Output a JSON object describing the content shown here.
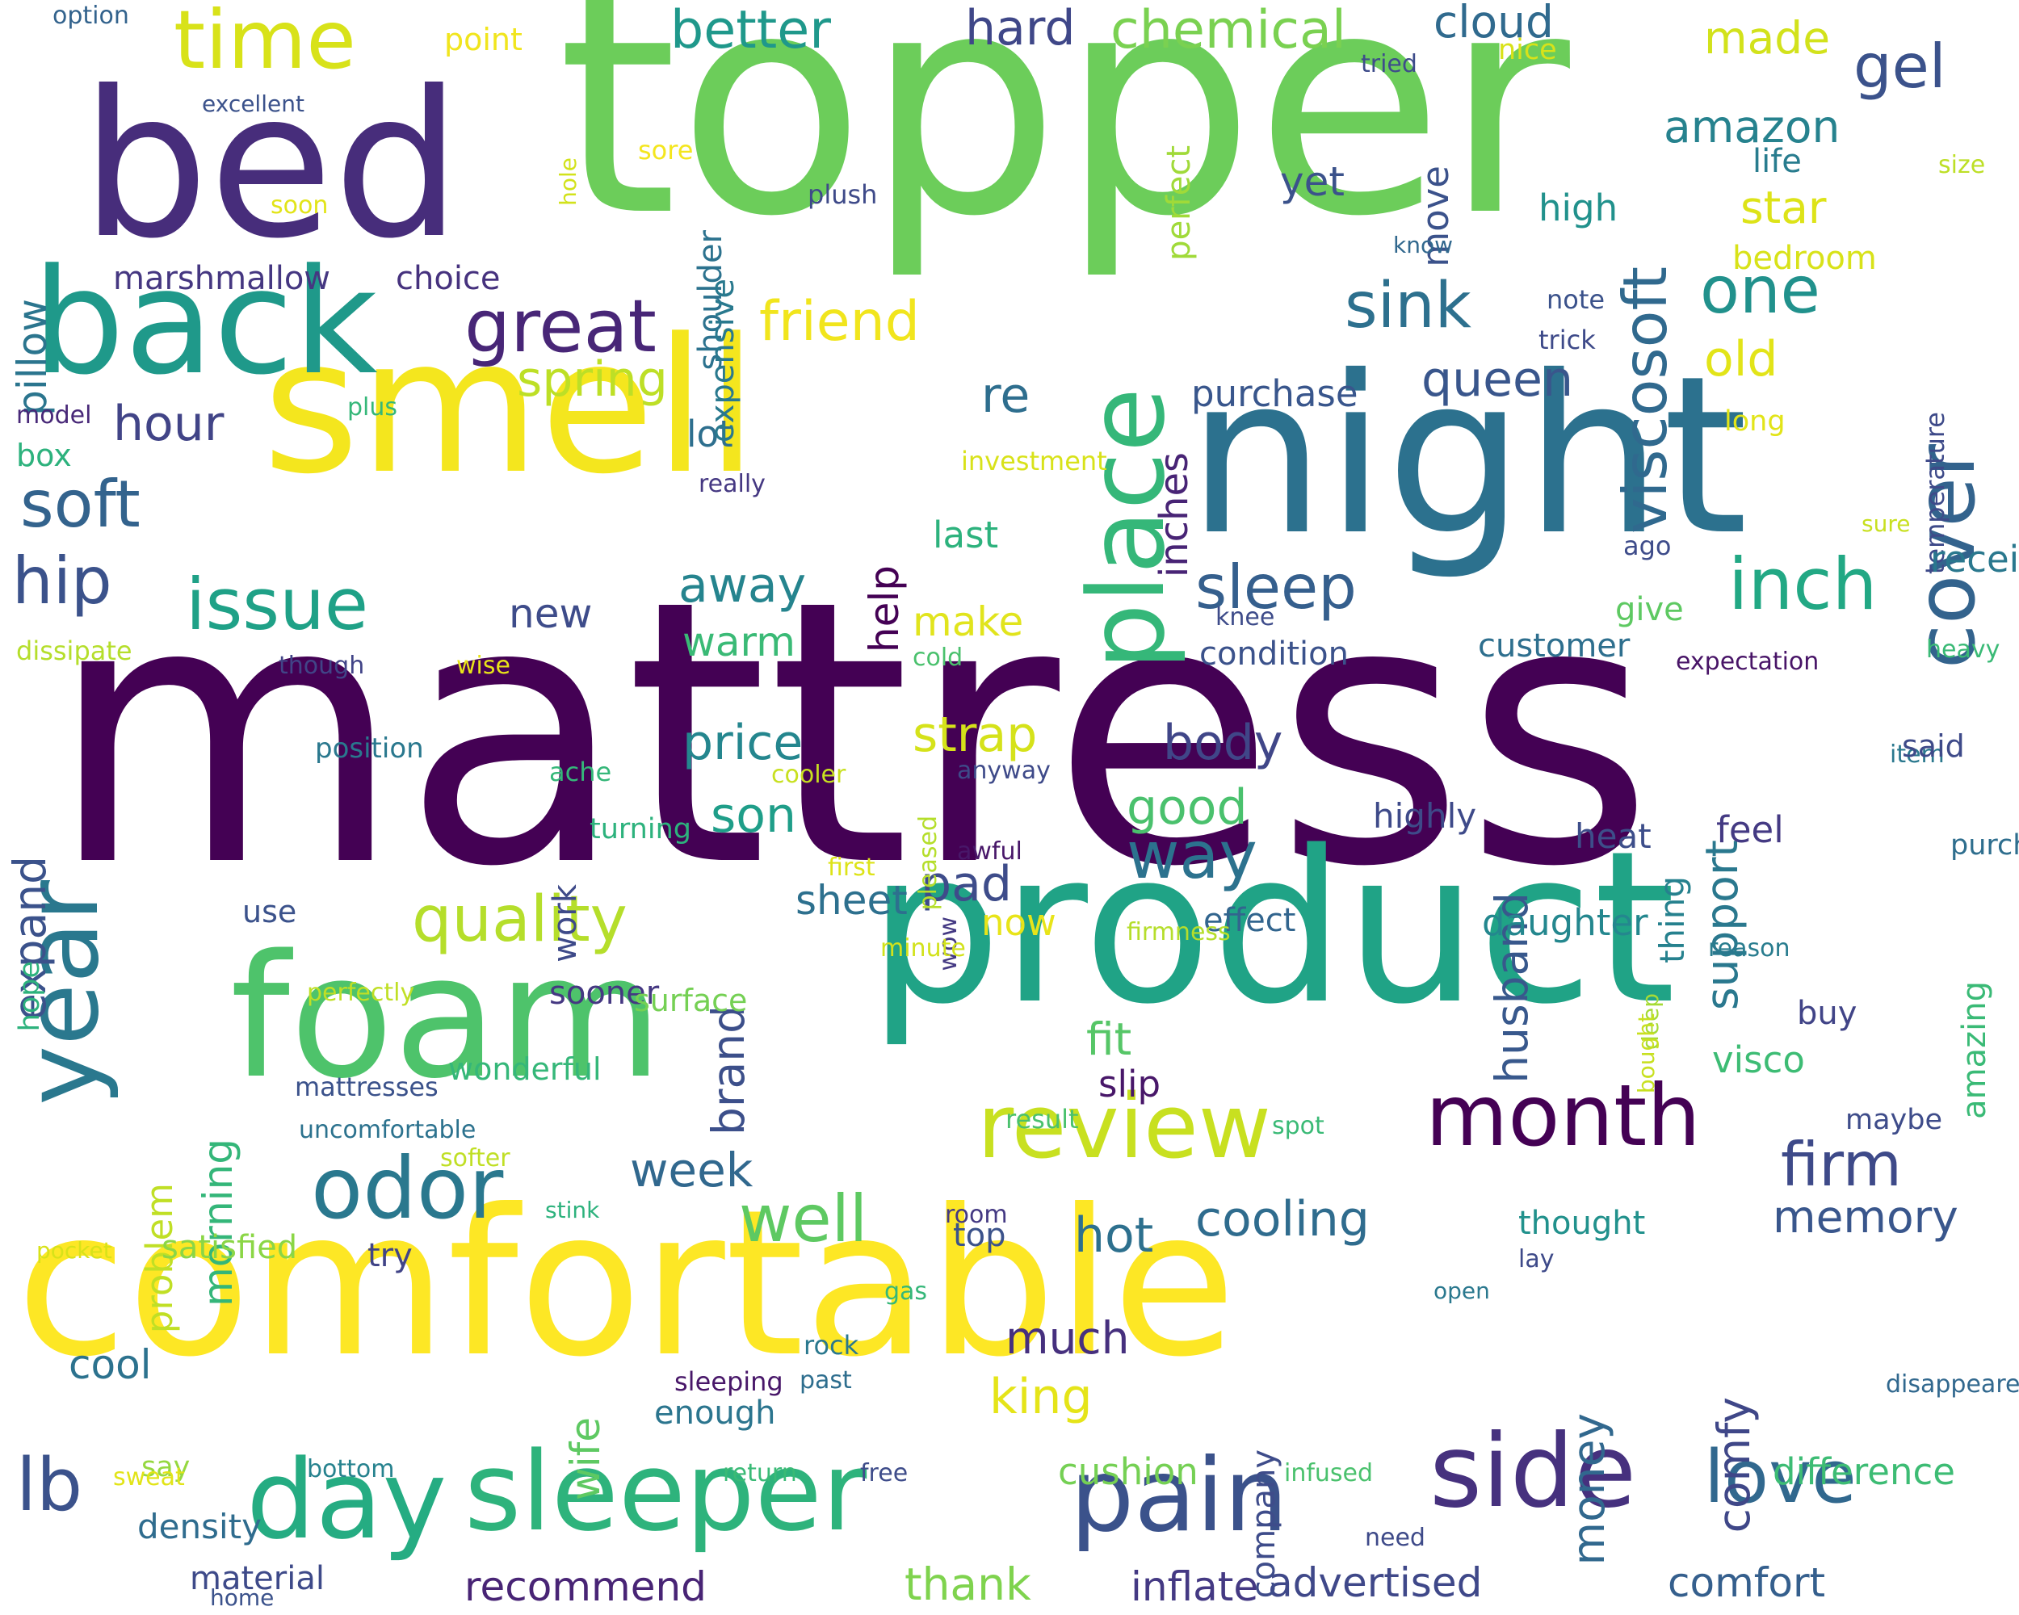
{
  "cloud": {
    "words": [
      {
        "text": "mattress",
        "color": "#440154"
      },
      {
        "text": "topper",
        "color": "#6ccd5a"
      },
      {
        "text": "comfortable",
        "color": "#fde725"
      },
      {
        "text": "product",
        "color": "#20a386"
      },
      {
        "text": "night",
        "color": "#2c718e"
      },
      {
        "text": "smell",
        "color": "#f4e61e"
      },
      {
        "text": "bed",
        "color": "#472d7b"
      },
      {
        "text": "foam",
        "color": "#4ec36b"
      },
      {
        "text": "back",
        "color": "#1f998a"
      },
      {
        "text": "sleeper",
        "color": "#2eb37c"
      },
      {
        "text": "year",
        "color": "#2a788e"
      },
      {
        "text": "day",
        "color": "#25ac82"
      },
      {
        "text": "review",
        "color": "#c8e020"
      },
      {
        "text": "side",
        "color": "#46317e"
      },
      {
        "text": "pain",
        "color": "#3b528b"
      },
      {
        "text": "month",
        "color": "#440154"
      },
      {
        "text": "odor",
        "color": "#2a788e"
      },
      {
        "text": "time",
        "color": "#d8e219"
      },
      {
        "text": "place",
        "color": "#35b779"
      },
      {
        "text": "great",
        "color": "#482677"
      },
      {
        "text": "cover",
        "color": "#33638d"
      },
      {
        "text": "love",
        "color": "#31688e"
      },
      {
        "text": "lb",
        "color": "#3b528b"
      },
      {
        "text": "issue",
        "color": "#1fa187"
      },
      {
        "text": "inch",
        "color": "#22a884"
      },
      {
        "text": "sleep",
        "color": "#355f8d"
      },
      {
        "text": "quality",
        "color": "#b5de2b"
      },
      {
        "text": "well",
        "color": "#5ec962"
      },
      {
        "text": "way",
        "color": "#2c728e"
      },
      {
        "text": "one",
        "color": "#21918c"
      },
      {
        "text": "firm",
        "color": "#3e4a89"
      },
      {
        "text": "sink",
        "color": "#2d708e"
      },
      {
        "text": "soft",
        "color": "#33638d"
      },
      {
        "text": "hip",
        "color": "#3b528b"
      },
      {
        "text": "gel",
        "color": "#3b528b"
      },
      {
        "text": "friend",
        "color": "#f1e51d"
      },
      {
        "text": "better",
        "color": "#1f988b"
      },
      {
        "text": "chemical",
        "color": "#7ad151"
      },
      {
        "text": "hard",
        "color": "#3f4788"
      },
      {
        "text": "queen",
        "color": "#39568c"
      },
      {
        "text": "cloud",
        "color": "#306a8e"
      },
      {
        "text": "spring",
        "color": "#bddf26"
      },
      {
        "text": "hour",
        "color": "#414487"
      },
      {
        "text": "price",
        "color": "#24868e"
      },
      {
        "text": "son",
        "color": "#1f9e89"
      },
      {
        "text": "pad",
        "color": "#3e4c8a"
      },
      {
        "text": "strap",
        "color": "#d5e21a"
      },
      {
        "text": "body",
        "color": "#404688"
      },
      {
        "text": "good",
        "color": "#4ac16d"
      },
      {
        "text": "hot",
        "color": "#2d708e"
      },
      {
        "text": "cooling",
        "color": "#2f6c8e"
      },
      {
        "text": "memory",
        "color": "#39568c"
      },
      {
        "text": "week",
        "color": "#31688e"
      },
      {
        "text": "much",
        "color": "#46307e"
      },
      {
        "text": "king",
        "color": "#e5e419"
      },
      {
        "text": "thank",
        "color": "#7fd34e"
      },
      {
        "text": "recommend",
        "color": "#482475"
      },
      {
        "text": "advertised",
        "color": "#3f4889"
      },
      {
        "text": "comfort",
        "color": "#355f8d"
      },
      {
        "text": "inflate",
        "color": "#443983"
      },
      {
        "text": "cushion",
        "color": "#75d054"
      },
      {
        "text": "difference",
        "color": "#3dbc74"
      },
      {
        "text": "star",
        "color": "#dde318"
      },
      {
        "text": "old",
        "color": "#e2e418"
      },
      {
        "text": "made",
        "color": "#d2e21b"
      },
      {
        "text": "amazon",
        "color": "#26828e"
      },
      {
        "text": "viscosoft",
        "color": "#30698e"
      },
      {
        "text": "life",
        "color": "#287c8e"
      },
      {
        "text": "bedroom",
        "color": "#d8e219"
      },
      {
        "text": "temperature",
        "color": "#3e4a89"
      },
      {
        "text": "high",
        "color": "#21918c"
      },
      {
        "text": "yet",
        "color": "#3b528b"
      },
      {
        "text": "purchase",
        "color": "#39568c"
      },
      {
        "text": "re",
        "color": "#2e6e8e"
      },
      {
        "text": "help",
        "color": "#440154"
      },
      {
        "text": "inches",
        "color": "#482475"
      },
      {
        "text": "lot",
        "color": "#2e6f8e"
      },
      {
        "text": "last",
        "color": "#2db27d"
      },
      {
        "text": "away",
        "color": "#25848e"
      },
      {
        "text": "warm",
        "color": "#3aba76"
      },
      {
        "text": "new",
        "color": "#3e4c8a"
      },
      {
        "text": "make",
        "color": "#e1e41d"
      },
      {
        "text": "expand",
        "color": "#3b528b"
      },
      {
        "text": "pillow",
        "color": "#2b758e"
      },
      {
        "text": "marshmallow",
        "color": "#453781"
      },
      {
        "text": "choice",
        "color": "#46327e"
      },
      {
        "text": "condition",
        "color": "#3b528b"
      },
      {
        "text": "customer",
        "color": "#2e6f8e"
      },
      {
        "text": "husband",
        "color": "#38588c"
      },
      {
        "text": "support",
        "color": "#2a788e"
      },
      {
        "text": "highly",
        "color": "#3e4a89"
      },
      {
        "text": "heat",
        "color": "#3d4e8a"
      },
      {
        "text": "feel",
        "color": "#443a83"
      },
      {
        "text": "daughter",
        "color": "#24878e"
      },
      {
        "text": "amazing",
        "color": "#3aba76"
      },
      {
        "text": "buy",
        "color": "#414487"
      },
      {
        "text": "visco",
        "color": "#3dbc74"
      },
      {
        "text": "fit",
        "color": "#56c667"
      },
      {
        "text": "slip",
        "color": "#481769"
      },
      {
        "text": "thing",
        "color": "#26818e"
      },
      {
        "text": "brand",
        "color": "#3c4f8a"
      },
      {
        "text": "morning",
        "color": "#34b679"
      },
      {
        "text": "problem",
        "color": "#c0df25"
      },
      {
        "text": "work",
        "color": "#3e4a89"
      },
      {
        "text": "now",
        "color": "#e8e419"
      },
      {
        "text": "sheet",
        "color": "#2d708e"
      },
      {
        "text": "effect",
        "color": "#32658e"
      },
      {
        "text": "sooner",
        "color": "#453882"
      },
      {
        "text": "use",
        "color": "#3b528b"
      },
      {
        "text": "ache",
        "color": "#35b779"
      },
      {
        "text": "box",
        "color": "#2db27d"
      },
      {
        "text": "wife",
        "color": "#5ec962"
      },
      {
        "text": "enough",
        "color": "#2b758e"
      },
      {
        "text": "satisfied",
        "color": "#8bd646"
      },
      {
        "text": "try",
        "color": "#414487"
      },
      {
        "text": "top",
        "color": "#3b528b"
      },
      {
        "text": "cool",
        "color": "#2c728e"
      },
      {
        "text": "say",
        "color": "#95d840"
      },
      {
        "text": "density",
        "color": "#2f6c8e"
      },
      {
        "text": "material",
        "color": "#3e4a89"
      },
      {
        "text": "money",
        "color": "#31688e"
      },
      {
        "text": "comfy",
        "color": "#3f4788"
      },
      {
        "text": "company",
        "color": "#3e4c8a"
      },
      {
        "text": "thought",
        "color": "#21918c"
      },
      {
        "text": "shoulder",
        "color": "#2c728e"
      },
      {
        "text": "expensive",
        "color": "#29798e"
      },
      {
        "text": "perfect",
        "color": "#a0da39"
      },
      {
        "text": "move",
        "color": "#3b528b"
      },
      {
        "text": "wonderful",
        "color": "#35b779"
      },
      {
        "text": "surface",
        "color": "#75d054"
      },
      {
        "text": "position",
        "color": "#2a788e"
      },
      {
        "text": "option",
        "color": "#33638d"
      },
      {
        "text": "point",
        "color": "#f1e51d"
      },
      {
        "text": "excellent",
        "color": "#3b528b"
      },
      {
        "text": "sore",
        "color": "#f4e61e"
      },
      {
        "text": "soon",
        "color": "#e2e418"
      },
      {
        "text": "plush",
        "color": "#3e4a89"
      },
      {
        "text": "hole",
        "color": "#d2e21b"
      },
      {
        "text": "know",
        "color": "#31688e"
      },
      {
        "text": "tried",
        "color": "#3e4c8a"
      },
      {
        "text": "nice",
        "color": "#d8e219"
      },
      {
        "text": "size",
        "color": "#bddf26"
      },
      {
        "text": "note",
        "color": "#3b528b"
      },
      {
        "text": "trick",
        "color": "#3e4a89"
      },
      {
        "text": "model",
        "color": "#482878"
      },
      {
        "text": "plus",
        "color": "#35b779"
      },
      {
        "text": "investment",
        "color": "#d8e219"
      },
      {
        "text": "really",
        "color": "#453882"
      },
      {
        "text": "long",
        "color": "#e2e418"
      },
      {
        "text": "sure",
        "color": "#c8e020"
      },
      {
        "text": "received",
        "color": "#2a788e"
      },
      {
        "text": "ago",
        "color": "#3e4c8a"
      },
      {
        "text": "give",
        "color": "#5ec962"
      },
      {
        "text": "heavy",
        "color": "#3aba76"
      },
      {
        "text": "expectation",
        "color": "#481467"
      },
      {
        "text": "dissipate",
        "color": "#b5de2b"
      },
      {
        "text": "though",
        "color": "#414487"
      },
      {
        "text": "wise",
        "color": "#e8e419"
      },
      {
        "text": "cold",
        "color": "#4ac16d"
      },
      {
        "text": "knee",
        "color": "#3e4c8a"
      },
      {
        "text": "wow",
        "color": "#443983"
      },
      {
        "text": "item",
        "color": "#2a788e"
      },
      {
        "text": "pleased",
        "color": "#b5de2b"
      },
      {
        "text": "cooler",
        "color": "#c8e020"
      },
      {
        "text": "first",
        "color": "#dde318"
      },
      {
        "text": "anyway",
        "color": "#3e4a89"
      },
      {
        "text": "turning",
        "color": "#2db27d"
      },
      {
        "text": "awful",
        "color": "#481769"
      },
      {
        "text": "said",
        "color": "#3e4a89"
      },
      {
        "text": "purchased",
        "color": "#2e6e8e"
      },
      {
        "text": "firmness",
        "color": "#b5de2b"
      },
      {
        "text": "minute",
        "color": "#d2e21b"
      },
      {
        "text": "reason",
        "color": "#287c8e"
      },
      {
        "text": "perfectly",
        "color": "#c0df25"
      },
      {
        "text": "deep",
        "color": "#a5db36"
      },
      {
        "text": "hope",
        "color": "#2db27d"
      },
      {
        "text": "mattresses",
        "color": "#3b528b"
      },
      {
        "text": "uncomfortable",
        "color": "#2c728e"
      },
      {
        "text": "softer",
        "color": "#c0df25"
      },
      {
        "text": "result",
        "color": "#4ac16d"
      },
      {
        "text": "spot",
        "color": "#3aba76"
      },
      {
        "text": "maybe",
        "color": "#3e4c8a"
      },
      {
        "text": "bought",
        "color": "#c8e020"
      },
      {
        "text": "stink",
        "color": "#2db27d"
      },
      {
        "text": "pocket",
        "color": "#d8e219"
      },
      {
        "text": "room",
        "color": "#443983"
      },
      {
        "text": "lay",
        "color": "#3e4a89"
      },
      {
        "text": "gas",
        "color": "#35b779"
      },
      {
        "text": "open",
        "color": "#2a788e"
      },
      {
        "text": "rock",
        "color": "#2a788e"
      },
      {
        "text": "past",
        "color": "#2e6e8e"
      },
      {
        "text": "sleeping",
        "color": "#481769"
      },
      {
        "text": "disappeared",
        "color": "#31688e"
      },
      {
        "text": "sweat",
        "color": "#e2e418"
      },
      {
        "text": "bottom",
        "color": "#26828e"
      },
      {
        "text": "return",
        "color": "#3aba76"
      },
      {
        "text": "free",
        "color": "#3e4c8a"
      },
      {
        "text": "infused",
        "color": "#4ac16d"
      },
      {
        "text": "need",
        "color": "#3e4a89"
      },
      {
        "text": "home",
        "color": "#3b528b"
      }
    ]
  }
}
